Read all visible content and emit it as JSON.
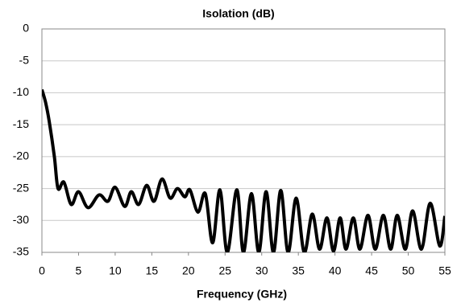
{
  "chart_data": {
    "type": "line",
    "title": "Isolation (dB)",
    "x_label": "Frequency (GHz)",
    "x": [
      0,
      0.5,
      1,
      1.7,
      2.2,
      3,
      4,
      5,
      6.3,
      7.8,
      9,
      10,
      11.3,
      12.2,
      13.2,
      14.3,
      15.3,
      16.4,
      17.5,
      18.5,
      19.5,
      20.2,
      21.3,
      22.3,
      23.3,
      24.3,
      25.3,
      26.6,
      27.5,
      28.6,
      29.6,
      30.6,
      31.6,
      32.6,
      33.6,
      34.7,
      35.8,
      36.9,
      37.9,
      38.9,
      39.8,
      40.7,
      41.5,
      42.5,
      43.4,
      44.5,
      45.5,
      46.6,
      47.6,
      48.5,
      49.6,
      50.6,
      51.8,
      53,
      54.3,
      55
    ],
    "series": [
      {
        "name": "Isolation",
        "color": "#000000",
        "values": [
          -9.5,
          -11.5,
          -14.5,
          -20,
          -25,
          -24,
          -27.5,
          -25.5,
          -28,
          -26,
          -27,
          -24.8,
          -27.8,
          -25.5,
          -27.5,
          -24.5,
          -27,
          -23.5,
          -26.5,
          -25,
          -26.3,
          -25.2,
          -28.7,
          -25.8,
          -33.5,
          -25.2,
          -35,
          -25.2,
          -35,
          -25.8,
          -35,
          -25.5,
          -35,
          -25.3,
          -35,
          -26.5,
          -35,
          -29,
          -34.5,
          -29.6,
          -34.8,
          -29.6,
          -34.5,
          -29.6,
          -34.5,
          -29.2,
          -34.5,
          -29.2,
          -34.5,
          -29.2,
          -34.5,
          -28.5,
          -34.5,
          -27.3,
          -34,
          -29.3
        ]
      }
    ],
    "xlim": [
      0,
      55
    ],
    "xticks": [
      0,
      5,
      10,
      15,
      20,
      25,
      30,
      35,
      40,
      45,
      50,
      55
    ],
    "ylim": [
      -35,
      0
    ],
    "yticks": [
      0,
      -5,
      -10,
      -15,
      -20,
      -25,
      -30,
      -35
    ],
    "grid": "y"
  }
}
